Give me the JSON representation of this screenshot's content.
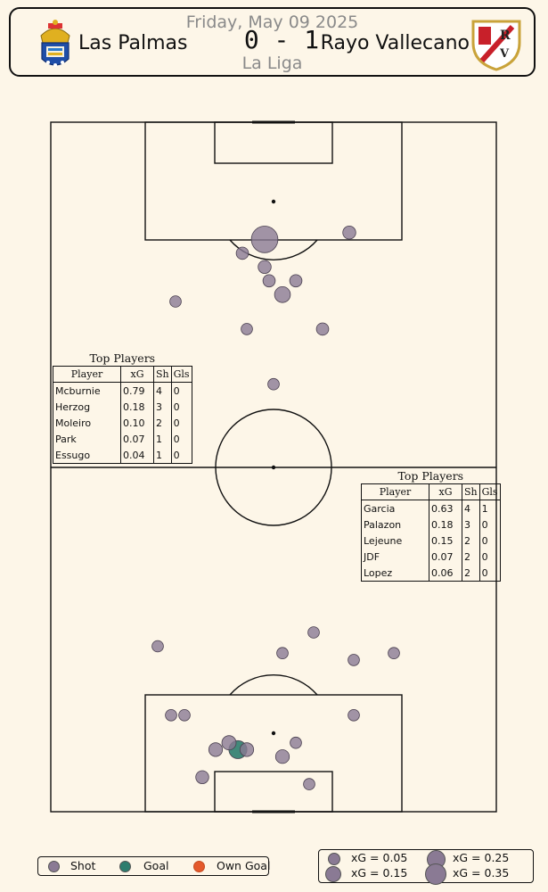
{
  "match": {
    "date": "Friday, May 09 2025",
    "competition": "La Liga",
    "home_team": "Las Palmas",
    "away_team": "Rayo Vallecano",
    "score": "0 - 1"
  },
  "colors": {
    "background": "#fdf6e8",
    "shot": "#8a7a94",
    "goal": "#2e7d6e",
    "own_goal": "#e4592c",
    "lines": "#111111",
    "muted_text": "#8a8a8a"
  },
  "icons": {
    "home_crest": "las-palmas-crest-icon",
    "away_crest": "rayo-vallecano-crest-icon"
  },
  "top_players_home": {
    "title": "Top Players",
    "headers": [
      "Player",
      "xG",
      "Sh",
      "Gls"
    ],
    "rows": [
      [
        "Mcburnie",
        "0.79",
        "4",
        "0"
      ],
      [
        "Herzog",
        "0.18",
        "3",
        "0"
      ],
      [
        "Moleiro",
        "0.10",
        "2",
        "0"
      ],
      [
        "Park",
        "0.07",
        "1",
        "0"
      ],
      [
        "Essugo",
        "0.04",
        "1",
        "0"
      ]
    ]
  },
  "top_players_away": {
    "title": "Top Players",
    "headers": [
      "Player",
      "xG",
      "Sh",
      "Gls"
    ],
    "rows": [
      [
        "Garcia",
        "0.63",
        "4",
        "1"
      ],
      [
        "Palazon",
        "0.18",
        "3",
        "0"
      ],
      [
        "Lejeune",
        "0.15",
        "2",
        "0"
      ],
      [
        "JDF",
        "0.07",
        "2",
        "0"
      ],
      [
        "Lopez",
        "0.06",
        "2",
        "0"
      ]
    ]
  },
  "legend": {
    "types": [
      "Shot",
      "Goal",
      "Own Goal"
    ],
    "sizes": [
      "xG = 0.05",
      "xG = 0.15",
      "xG = 0.25",
      "xG = 0.35"
    ],
    "size_values": [
      0.05,
      0.15,
      0.25,
      0.35
    ]
  },
  "chart_data": {
    "type": "scatter",
    "description_axes": "pitch coordinates 0-100 across width (x) and length toward each team's attacking goal (y)",
    "series": [
      {
        "team": "Las Palmas",
        "attacking": "top",
        "shots": [
          {
            "x": 48,
            "y": 83,
            "xG": 0.45,
            "type": "shot"
          },
          {
            "x": 43,
            "y": 81,
            "xG": 0.04,
            "type": "shot"
          },
          {
            "x": 67,
            "y": 84,
            "xG": 0.05,
            "type": "shot"
          },
          {
            "x": 48,
            "y": 79,
            "xG": 0.05,
            "type": "shot"
          },
          {
            "x": 49,
            "y": 77,
            "xG": 0.04,
            "type": "shot"
          },
          {
            "x": 52,
            "y": 75,
            "xG": 0.1,
            "type": "shot"
          },
          {
            "x": 55,
            "y": 77,
            "xG": 0.04,
            "type": "shot"
          },
          {
            "x": 28,
            "y": 74,
            "xG": 0.03,
            "type": "shot"
          },
          {
            "x": 44,
            "y": 70,
            "xG": 0.03,
            "type": "shot"
          },
          {
            "x": 61,
            "y": 70,
            "xG": 0.04,
            "type": "shot"
          },
          {
            "x": 50,
            "y": 62,
            "xG": 0.03,
            "type": "shot"
          }
        ]
      },
      {
        "team": "Rayo Vallecano",
        "attacking": "bottom",
        "shots": [
          {
            "x": 24,
            "y": 24,
            "xG": 0.03,
            "type": "shot"
          },
          {
            "x": 59,
            "y": 26,
            "xG": 0.03,
            "type": "shot"
          },
          {
            "x": 52,
            "y": 23,
            "xG": 0.03,
            "type": "shot"
          },
          {
            "x": 68,
            "y": 22,
            "xG": 0.03,
            "type": "shot"
          },
          {
            "x": 77,
            "y": 23,
            "xG": 0.03,
            "type": "shot"
          },
          {
            "x": 27,
            "y": 14,
            "xG": 0.03,
            "type": "shot"
          },
          {
            "x": 30,
            "y": 14,
            "xG": 0.03,
            "type": "shot"
          },
          {
            "x": 68,
            "y": 14,
            "xG": 0.03,
            "type": "shot"
          },
          {
            "x": 37,
            "y": 9,
            "xG": 0.06,
            "type": "shot"
          },
          {
            "x": 40,
            "y": 10,
            "xG": 0.07,
            "type": "shot"
          },
          {
            "x": 44,
            "y": 9,
            "xG": 0.06,
            "type": "shot"
          },
          {
            "x": 42,
            "y": 9,
            "xG": 0.15,
            "type": "goal"
          },
          {
            "x": 55,
            "y": 10,
            "xG": 0.03,
            "type": "shot"
          },
          {
            "x": 52,
            "y": 8,
            "xG": 0.06,
            "type": "shot"
          },
          {
            "x": 34,
            "y": 5,
            "xG": 0.05,
            "type": "shot"
          },
          {
            "x": 58,
            "y": 4,
            "xG": 0.03,
            "type": "shot"
          }
        ]
      }
    ]
  }
}
